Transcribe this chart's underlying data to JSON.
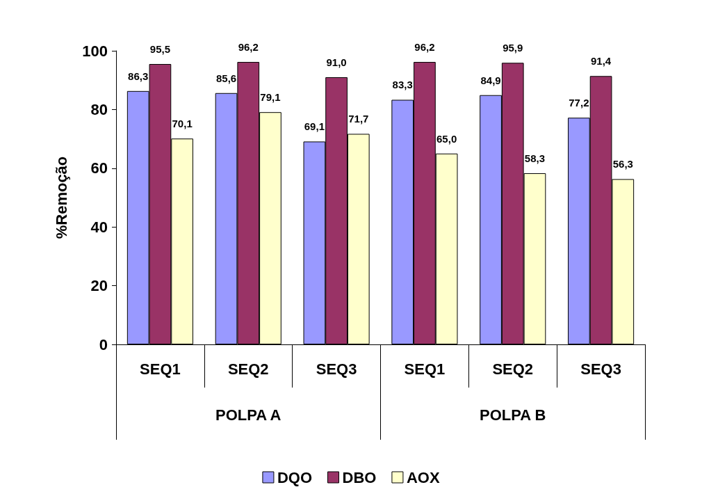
{
  "chart_data": {
    "type": "bar",
    "ylabel": "%Remoção",
    "categories": [
      "SEQ1",
      "SEQ2",
      "SEQ3",
      "SEQ1",
      "SEQ2",
      "SEQ3"
    ],
    "annotations": [
      "POLPA A",
      "POLPA B"
    ],
    "series": [
      {
        "name": "DQO",
        "color": "#9999ff",
        "values": [
          86.3,
          85.6,
          69.1,
          83.3,
          84.9,
          77.2
        ],
        "value_labels": [
          "86,3",
          "85,6",
          "69,1",
          "83,3",
          "84,9",
          "77,2"
        ]
      },
      {
        "name": "DBO",
        "color": "#993366",
        "values": [
          95.5,
          96.2,
          91.0,
          96.2,
          95.9,
          91.4
        ],
        "value_labels": [
          "95,5",
          "96,2",
          "91,0",
          "96,2",
          "95,9",
          "91,4"
        ]
      },
      {
        "name": "AOX",
        "color": "#ffffcc",
        "values": [
          70.1,
          79.1,
          71.7,
          65.0,
          58.3,
          56.3
        ],
        "value_labels": [
          "70,1",
          "79,1",
          "71,7",
          "65,0",
          "58,3",
          "56,3"
        ]
      }
    ],
    "ylim": [
      0,
      100
    ],
    "yticks": [
      0,
      20,
      40,
      60,
      80,
      100
    ],
    "grid": false,
    "legend": "bottom"
  }
}
